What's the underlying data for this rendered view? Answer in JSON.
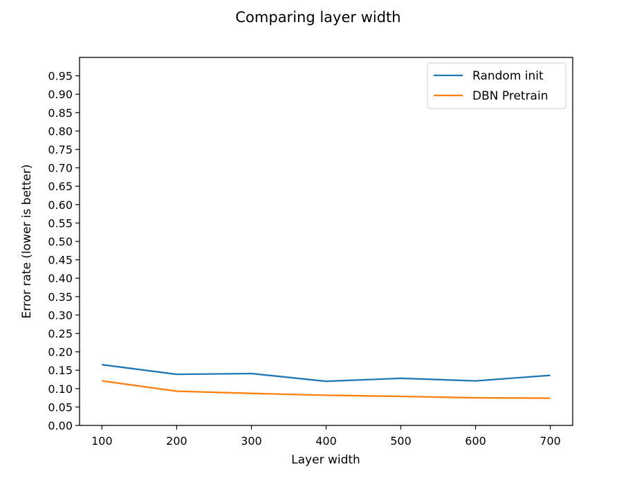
{
  "chart_data": {
    "type": "line",
    "title": "Comparing layer width",
    "xlabel": "Layer width",
    "ylabel": "Error rate (lower is better)",
    "x": [
      100,
      200,
      300,
      400,
      500,
      600,
      700
    ],
    "xlim": [
      70,
      730
    ],
    "ylim": [
      0.0,
      1.0
    ],
    "xticks": [
      100,
      200,
      300,
      400,
      500,
      600,
      700
    ],
    "yticks": [
      0.0,
      0.05,
      0.1,
      0.15,
      0.2,
      0.25,
      0.3,
      0.35,
      0.4,
      0.45,
      0.5,
      0.55,
      0.6,
      0.65,
      0.7,
      0.75,
      0.8,
      0.85,
      0.9,
      0.95
    ],
    "grid": false,
    "legend_position": "top-right",
    "series": [
      {
        "name": "Random init",
        "color": "#1f77b4",
        "values": [
          0.165,
          0.139,
          0.141,
          0.12,
          0.128,
          0.121,
          0.136
        ]
      },
      {
        "name": "DBN Pretrain",
        "color": "#ff7f0e",
        "values": [
          0.121,
          0.093,
          0.087,
          0.082,
          0.079,
          0.075,
          0.074
        ]
      }
    ]
  }
}
